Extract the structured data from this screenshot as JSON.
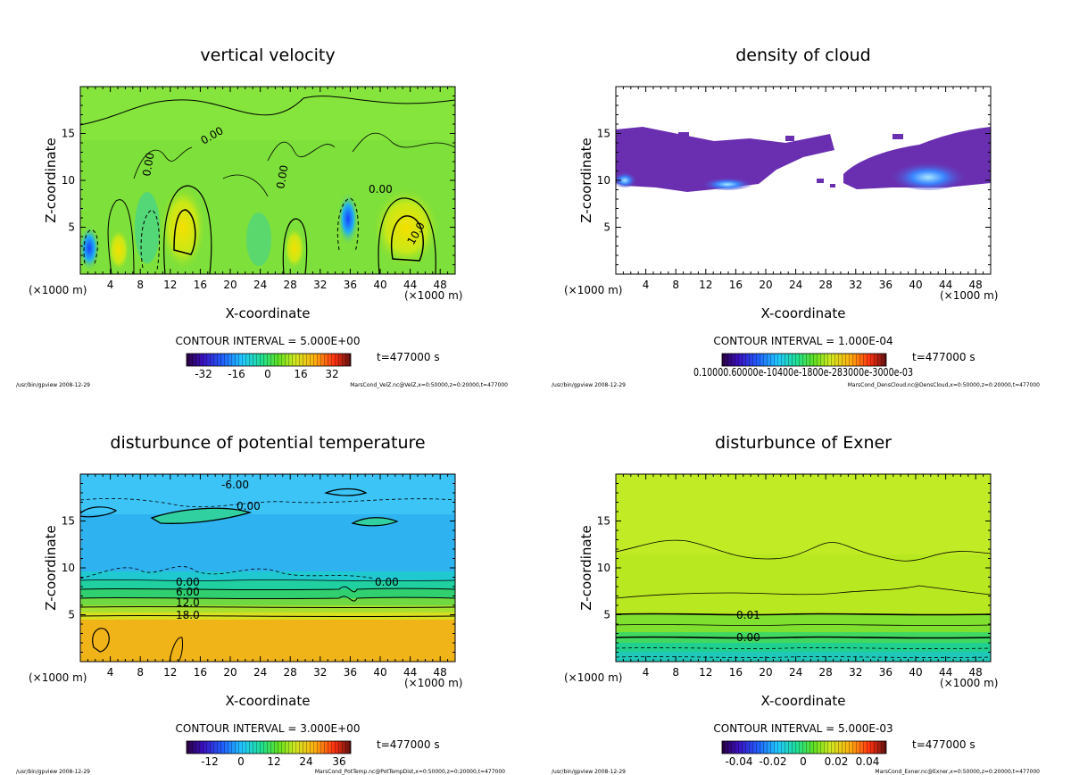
{
  "colors": {
    "vel_bg": "#7ee03a",
    "pot_bg": "#2fb2f0",
    "pot_warm": "#f0b418",
    "exner_bg": "#b8e820",
    "cloud_fill": "#6a2fb0",
    "cloud_light": "#3a86ff"
  },
  "chart_data": [
    {
      "id": "vertical-velocity",
      "type": "heatmap",
      "title": "vertical velocity",
      "xlabel": "X-coordinate",
      "ylabel": "Z-coordinate",
      "x_unit": "(×1000 m)",
      "xlim": [
        0,
        50
      ],
      "ylim": [
        0,
        20
      ],
      "xticks": [
        4,
        8,
        12,
        16,
        20,
        24,
        28,
        32,
        36,
        40,
        44,
        48
      ],
      "yticks": [
        5,
        10,
        15
      ],
      "contour_interval": "CONTOUR INTERVAL = 5.000E+00",
      "time_label": "t=477000 s",
      "colorbar_ticks": [
        "-32",
        "-16",
        "0",
        "16",
        "32"
      ],
      "contour_labels": [
        "0.00",
        "0.00",
        "0.00",
        "0.00",
        "10.0"
      ],
      "footer_left": "/usr/bin/gpview  2008-12-29",
      "footer_right": "MarsCond_VelZ.nc@VelZ,x=0:50000,z=0:20000,t=477000"
    },
    {
      "id": "density-of-cloud",
      "type": "heatmap",
      "title": "density of cloud",
      "xlabel": "X-coordinate",
      "ylabel": "Z-coordinate",
      "x_unit": "(×1000 m)",
      "xlim": [
        0,
        50
      ],
      "ylim": [
        0,
        20
      ],
      "xticks": [
        4,
        8,
        12,
        16,
        20,
        24,
        28,
        32,
        36,
        40,
        44,
        48
      ],
      "yticks": [
        5,
        10,
        15
      ],
      "contour_interval": "CONTOUR INTERVAL = 1.000E-04",
      "time_label": "t=477000 s",
      "colorbar_ticks_text": "0.10000.60000e-10400e-1800e-283000e-3000e-03",
      "footer_left": "/usr/bin/gpview  2008-12-29",
      "footer_right": "MarsCond_DensCloud.nc@DensCloud,x=0:50000,z=0:20000,t=477000"
    },
    {
      "id": "disturbance-potential-temperature",
      "type": "heatmap",
      "title": "disturbunce of potential temperature",
      "xlabel": "X-coordinate",
      "ylabel": "Z-coordinate",
      "x_unit": "(×1000 m)",
      "xlim": [
        0,
        50
      ],
      "ylim": [
        0,
        20
      ],
      "xticks": [
        4,
        8,
        12,
        16,
        20,
        24,
        28,
        32,
        36,
        40,
        44,
        48
      ],
      "yticks": [
        5,
        10,
        15
      ],
      "contour_interval": "CONTOUR INTERVAL = 3.000E+00",
      "time_label": "t=477000 s",
      "colorbar_ticks": [
        "-12",
        "0",
        "12",
        "24",
        "36"
      ],
      "contour_labels": [
        "-6.00",
        "0.00",
        "0.00",
        "0.00",
        "6.00",
        "12.0",
        "18.0"
      ],
      "footer_left": "/usr/bin/gpview  2008-12-29",
      "footer_right": "MarsCond_PotTemp.nc@PotTempDist,x=0:50000,z=0:20000,t=477000"
    },
    {
      "id": "disturbance-exner",
      "type": "heatmap",
      "title": "disturbunce of Exner",
      "xlabel": "X-coordinate",
      "ylabel": "Z-coordinate",
      "x_unit": "(×1000 m)",
      "xlim": [
        0,
        50
      ],
      "ylim": [
        0,
        20
      ],
      "xticks": [
        4,
        8,
        12,
        16,
        20,
        24,
        28,
        32,
        36,
        40,
        44,
        48
      ],
      "yticks": [
        5,
        10,
        15
      ],
      "contour_interval": "CONTOUR INTERVAL = 5.000E-03",
      "time_label": "t=477000 s",
      "colorbar_ticks": [
        "-0.04",
        "-0.02",
        "0",
        "0.02",
        "0.04"
      ],
      "contour_labels": [
        "0.01",
        "0.00"
      ],
      "footer_left": "/usr/bin/gpview  2008-12-29",
      "footer_right": "MarsCond_Exner.nc@Exner,x=0:50000,z=0:20000,t=477000"
    }
  ]
}
